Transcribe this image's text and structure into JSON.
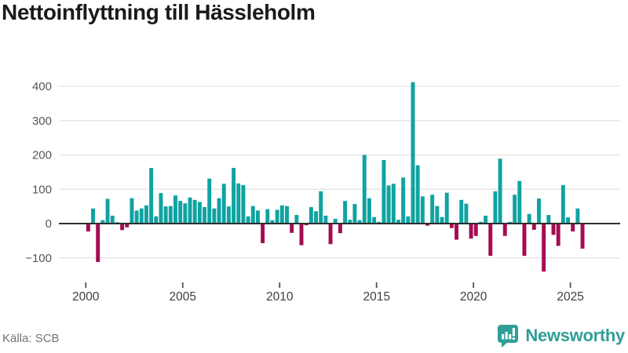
{
  "title": "Nettoinflyttning till Hässleholm",
  "source": "Källa: SCB",
  "branding": {
    "name": "Newsworthy",
    "color": "#2f9e97"
  },
  "chart_data": {
    "type": "bar",
    "title": "Nettoinflyttning till Hässleholm",
    "frequency": "quarterly",
    "start_period": "2000Q1",
    "end_period": "2025Q3",
    "periods": [
      "2000Q1",
      "2000Q2",
      "2000Q3",
      "2000Q4",
      "2001Q1",
      "2001Q2",
      "2001Q3",
      "2001Q4",
      "2002Q1",
      "2002Q2",
      "2002Q3",
      "2002Q4",
      "2003Q1",
      "2003Q2",
      "2003Q3",
      "2003Q4",
      "2004Q1",
      "2004Q2",
      "2004Q3",
      "2004Q4",
      "2005Q1",
      "2005Q2",
      "2005Q3",
      "2005Q4",
      "2006Q1",
      "2006Q2",
      "2006Q3",
      "2006Q4",
      "2007Q1",
      "2007Q2",
      "2007Q3",
      "2007Q4",
      "2008Q1",
      "2008Q2",
      "2008Q3",
      "2008Q4",
      "2009Q1",
      "2009Q2",
      "2009Q3",
      "2009Q4",
      "2010Q1",
      "2010Q2",
      "2010Q3",
      "2010Q4",
      "2011Q1",
      "2011Q2",
      "2011Q3",
      "2011Q4",
      "2012Q1",
      "2012Q2",
      "2012Q3",
      "2012Q4",
      "2013Q1",
      "2013Q2",
      "2013Q3",
      "2013Q4",
      "2014Q1",
      "2014Q2",
      "2014Q3",
      "2014Q4",
      "2015Q1",
      "2015Q2",
      "2015Q3",
      "2015Q4",
      "2016Q1",
      "2016Q2",
      "2016Q3",
      "2016Q4",
      "2017Q1",
      "2017Q2",
      "2017Q3",
      "2017Q4",
      "2018Q1",
      "2018Q2",
      "2018Q3",
      "2018Q4",
      "2019Q1",
      "2019Q2",
      "2019Q3",
      "2019Q4",
      "2020Q1",
      "2020Q2",
      "2020Q3",
      "2020Q4",
      "2021Q1",
      "2021Q2",
      "2021Q3",
      "2021Q4",
      "2022Q1",
      "2022Q2",
      "2022Q3",
      "2022Q4",
      "2023Q1",
      "2023Q2",
      "2023Q3",
      "2023Q4",
      "2024Q1",
      "2024Q2",
      "2024Q3",
      "2024Q4",
      "2025Q1",
      "2025Q2",
      "2025Q3"
    ],
    "values": [
      -23,
      44,
      -112,
      10,
      72,
      23,
      4,
      -19,
      -11,
      74,
      38,
      44,
      53,
      162,
      21,
      89,
      50,
      51,
      82,
      66,
      59,
      76,
      69,
      63,
      48,
      131,
      44,
      74,
      116,
      50,
      162,
      117,
      112,
      21,
      51,
      38,
      -57,
      42,
      10,
      40,
      53,
      51,
      -27,
      25,
      -63,
      -5,
      48,
      36,
      94,
      23,
      -60,
      14,
      -28,
      66,
      11,
      57,
      10,
      200,
      74,
      19,
      5,
      185,
      111,
      116,
      11,
      134,
      21,
      412,
      170,
      79,
      -6,
      84,
      51,
      19,
      90,
      -13,
      -47,
      69,
      58,
      -44,
      -36,
      5,
      23,
      -94,
      94,
      189,
      -36,
      5,
      84,
      124,
      -94,
      28,
      -18,
      73,
      -140,
      25,
      -33,
      -65,
      112,
      18,
      -23,
      44,
      -73
    ],
    "colors": {
      "positive": "#0fa3a1",
      "negative": "#a50b52"
    },
    "y_ticks": [
      400,
      300,
      200,
      100,
      0,
      -100
    ],
    "x_tick_years": [
      2000,
      2005,
      2010,
      2015,
      2020,
      2025
    ],
    "ylim": [
      -160,
      440
    ],
    "grid": "horizontal",
    "legend": "none"
  }
}
